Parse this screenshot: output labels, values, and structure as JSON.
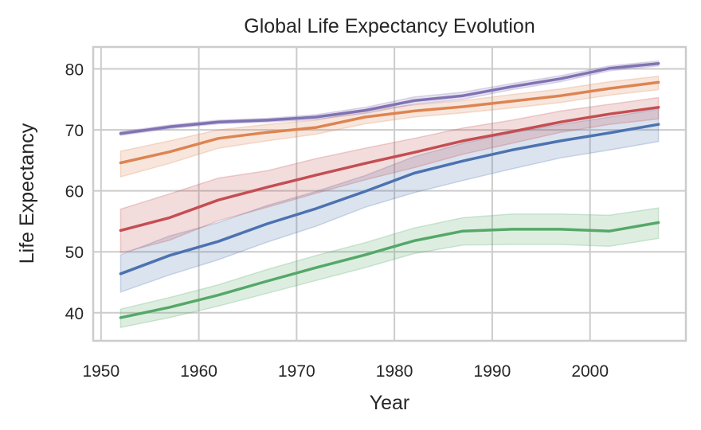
{
  "chart_data": {
    "type": "line",
    "title": "Global Life Expectancy Evolution",
    "xlabel": "Year",
    "ylabel": "Life Expectancy",
    "xlim": [
      1949.2,
      2009.8
    ],
    "ylim": [
      35.4,
      83.6
    ],
    "xticks": [
      1950,
      1960,
      1970,
      1980,
      1990,
      2000
    ],
    "yticks": [
      40,
      50,
      60,
      70,
      80
    ],
    "grid": true,
    "legend": "none",
    "x": [
      1952,
      1957,
      1962,
      1967,
      1972,
      1977,
      1982,
      1987,
      1992,
      1997,
      2002,
      2007
    ],
    "series": [
      {
        "name": "series-blue",
        "color": "#4c72b0",
        "values": [
          46.4,
          49.4,
          51.7,
          54.6,
          57.1,
          59.9,
          62.9,
          64.9,
          66.7,
          68.2,
          69.5,
          70.9
        ],
        "ci_low": [
          43.4,
          46.2,
          48.7,
          51.6,
          54.2,
          57.3,
          59.7,
          61.7,
          63.6,
          65.4,
          66.7,
          68.1
        ],
        "ci_high": [
          49.5,
          52.6,
          54.8,
          57.6,
          59.9,
          62.5,
          65.6,
          67.8,
          69.5,
          70.9,
          72.1,
          73.4
        ]
      },
      {
        "name": "series-orange",
        "color": "#dd8452",
        "values": [
          64.6,
          66.4,
          68.6,
          69.6,
          70.4,
          72.1,
          73.1,
          73.8,
          74.7,
          75.6,
          76.8,
          77.8
        ],
        "ci_low": [
          62.3,
          64.5,
          67.0,
          68.2,
          69.3,
          71.0,
          72.1,
          72.8,
          73.6,
          74.5,
          75.7,
          76.6
        ],
        "ci_high": [
          66.5,
          68.2,
          70.0,
          70.9,
          71.6,
          73.2,
          74.1,
          74.8,
          75.8,
          76.7,
          77.9,
          78.8
        ]
      },
      {
        "name": "series-green",
        "color": "#55a868",
        "values": [
          39.2,
          40.9,
          42.9,
          45.2,
          47.4,
          49.5,
          51.8,
          53.4,
          53.7,
          53.7,
          53.4,
          54.8
        ],
        "ci_low": [
          37.6,
          39.2,
          41.1,
          43.2,
          45.3,
          47.4,
          49.7,
          51.1,
          51.2,
          51.2,
          50.9,
          52.2
        ],
        "ci_high": [
          40.6,
          42.5,
          44.6,
          47.1,
          49.4,
          51.5,
          53.9,
          55.6,
          56.2,
          56.2,
          56.0,
          57.2
        ]
      },
      {
        "name": "series-red",
        "color": "#c44e52",
        "values": [
          53.5,
          55.6,
          58.5,
          60.6,
          62.6,
          64.5,
          66.3,
          68.2,
          69.7,
          71.3,
          72.6,
          73.7
        ],
        "ci_low": [
          49.8,
          51.9,
          55.1,
          57.3,
          59.6,
          61.8,
          63.8,
          66.0,
          67.8,
          69.6,
          70.9,
          71.8
        ],
        "ci_high": [
          57.0,
          59.5,
          62.1,
          63.3,
          65.3,
          67.0,
          68.6,
          70.3,
          71.6,
          73.1,
          74.2,
          75.3
        ]
      },
      {
        "name": "series-purple",
        "color": "#8172b3",
        "values": [
          69.4,
          70.5,
          71.3,
          71.6,
          72.1,
          73.2,
          74.8,
          75.6,
          77.1,
          78.4,
          80.1,
          80.9
        ],
        "ci_low": [
          69.1,
          70.2,
          71.0,
          71.3,
          71.7,
          72.7,
          74.2,
          75.0,
          76.6,
          77.9,
          79.7,
          80.5
        ],
        "ci_high": [
          69.7,
          70.8,
          71.6,
          71.9,
          72.5,
          73.7,
          75.4,
          76.2,
          77.6,
          78.9,
          80.5,
          81.3
        ]
      }
    ]
  }
}
